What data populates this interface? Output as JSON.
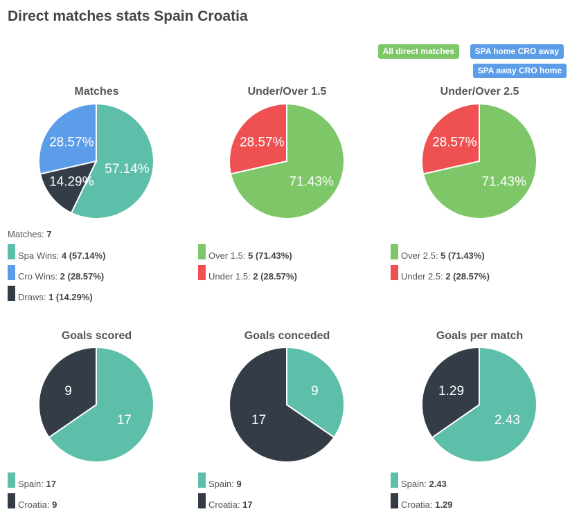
{
  "title": "Direct matches stats Spain Croatia",
  "filters": [
    {
      "label": "All direct matches",
      "color": "#7ec768",
      "active": true
    },
    {
      "label": "SPA home CRO away",
      "color": "#5b9de9",
      "active": false
    },
    {
      "label": "SPA away CRO home",
      "color": "#5b9de9",
      "active": false
    }
  ],
  "colors": {
    "teal": "#5dbea9",
    "blue": "#5b9de9",
    "dark": "#343c47",
    "green": "#7ec768",
    "red": "#ef5152"
  },
  "chart_data": [
    {
      "type": "pie",
      "title": "Matches",
      "header": {
        "label": "Matches:",
        "value": "7"
      },
      "slices": [
        {
          "name": "Spa Wins",
          "value": 4,
          "pct": "57.14%",
          "label": "57.14%",
          "legend": "4 (57.14%)",
          "color": "#5dbea9"
        },
        {
          "name": "Draws",
          "value": 1,
          "pct": "14.29%",
          "label": "14.29%",
          "legend": "1 (14.29%)",
          "color": "#343c47"
        },
        {
          "name": "Cro Wins",
          "value": 2,
          "pct": "28.57%",
          "label": "28.57%",
          "legend": "2 (28.57%)",
          "color": "#5b9de9"
        }
      ],
      "legend_order": [
        0,
        2,
        1
      ]
    },
    {
      "type": "pie",
      "title": "Under/Over 1.5",
      "slices": [
        {
          "name": "Over 1.5",
          "value": 5,
          "label": "71.43%",
          "legend": "5 (71.43%)",
          "color": "#7ec768"
        },
        {
          "name": "Under 1.5",
          "value": 2,
          "label": "28.57%",
          "legend": "2 (28.57%)",
          "color": "#ef5152"
        }
      ],
      "legend_order": [
        0,
        1
      ]
    },
    {
      "type": "pie",
      "title": "Under/Over 2.5",
      "slices": [
        {
          "name": "Over 2.5",
          "value": 5,
          "label": "71.43%",
          "legend": "5 (71.43%)",
          "color": "#7ec768"
        },
        {
          "name": "Under 2.5",
          "value": 2,
          "label": "28.57%",
          "legend": "2 (28.57%)",
          "color": "#ef5152"
        }
      ],
      "legend_order": [
        0,
        1
      ]
    },
    {
      "type": "pie",
      "title": "Goals scored",
      "slices": [
        {
          "name": "Spain",
          "value": 17,
          "label": "17",
          "legend": "17",
          "color": "#5dbea9"
        },
        {
          "name": "Croatia",
          "value": 9,
          "label": "9",
          "legend": "9",
          "color": "#343c47"
        }
      ],
      "legend_order": [
        0,
        1
      ]
    },
    {
      "type": "pie",
      "title": "Goals conceded",
      "slices": [
        {
          "name": "Spain",
          "value": 9,
          "label": "9",
          "legend": "9",
          "color": "#5dbea9"
        },
        {
          "name": "Croatia",
          "value": 17,
          "label": "17",
          "legend": "17",
          "color": "#343c47"
        }
      ],
      "legend_order": [
        0,
        1
      ]
    },
    {
      "type": "pie",
      "title": "Goals per match",
      "slices": [
        {
          "name": "Spain",
          "value": 2.43,
          "label": "2.43",
          "legend": "2.43",
          "color": "#5dbea9"
        },
        {
          "name": "Croatia",
          "value": 1.29,
          "label": "1.29",
          "legend": "1.29",
          "color": "#343c47"
        }
      ],
      "legend_order": [
        0,
        1
      ]
    }
  ]
}
